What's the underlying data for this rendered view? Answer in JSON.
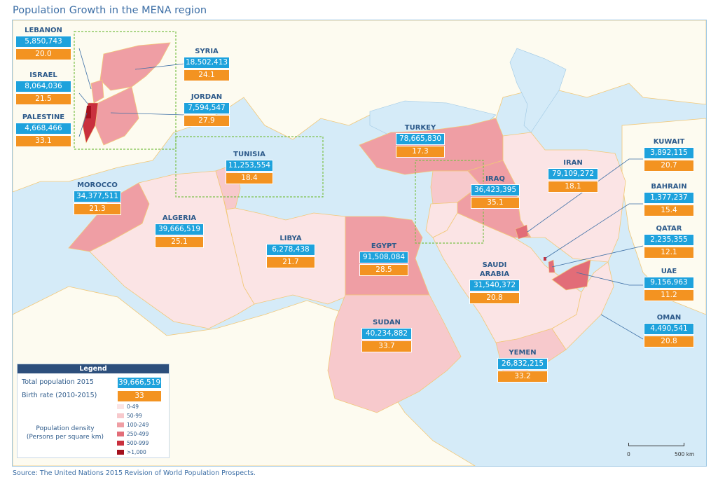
{
  "title": "Population Growth in the MENA region",
  "source": "Source: The United Nations 2015 Revision of World Population Prospects.",
  "countries": {
    "lebanon": {
      "name": "LEBANON",
      "population": "5,850,743",
      "birth_rate": "20.0"
    },
    "israel": {
      "name": "ISRAEL",
      "population": "8,064,036",
      "birth_rate": "21.5"
    },
    "palestine": {
      "name": "PALESTINE",
      "population": "4,668,466",
      "birth_rate": "33.1"
    },
    "syria": {
      "name": "SYRIA",
      "population": "18,502,413",
      "birth_rate": "24.1"
    },
    "jordan": {
      "name": "JORDAN",
      "population": "7,594,547",
      "birth_rate": "27.9"
    },
    "turkey": {
      "name": "TURKEY",
      "population": "78,665,830",
      "birth_rate": "17.3"
    },
    "tunisia": {
      "name": "TUNISIA",
      "population": "11,253,554",
      "birth_rate": "18.4"
    },
    "morocco": {
      "name": "MOROCCO",
      "population": "34,377,511",
      "birth_rate": "21.3"
    },
    "algeria": {
      "name": "ALGERIA",
      "population": "39,666,519",
      "birth_rate": "25.1"
    },
    "libya": {
      "name": "LIBYA",
      "population": "6,278,438",
      "birth_rate": "21.7"
    },
    "egypt": {
      "name": "EGYPT",
      "population": "91,508,084",
      "birth_rate": "28.5"
    },
    "iraq": {
      "name": "IRAQ",
      "population": "36,423,395",
      "birth_rate": "35.1"
    },
    "iran": {
      "name": "IRAN",
      "population": "79,109,272",
      "birth_rate": "18.1"
    },
    "saudi": {
      "name": "SAUDI ARABIA",
      "population": "31,540,372",
      "birth_rate": "20.8"
    },
    "sudan": {
      "name": "SUDAN",
      "population": "40,234,882",
      "birth_rate": "33.7"
    },
    "yemen": {
      "name": "YEMEN",
      "population": "26,832,215",
      "birth_rate": "33.2"
    },
    "kuwait": {
      "name": "KUWAIT",
      "population": "3,892,115",
      "birth_rate": "20.7"
    },
    "bahrain": {
      "name": "BAHRAIN",
      "population": "1,377,237",
      "birth_rate": "15.4"
    },
    "qatar": {
      "name": "QATAR",
      "population": "2,235,355",
      "birth_rate": "12.1"
    },
    "uae": {
      "name": "UAE",
      "population": "9,156,963",
      "birth_rate": "11.2"
    },
    "oman": {
      "name": "OMAN",
      "population": "4,490,541",
      "birth_rate": "20.8"
    }
  },
  "legend": {
    "title": "Legend",
    "total_population_label": "Total population 2015",
    "total_population_value": "39,666,519",
    "birth_rate_label": "Birth rate (2010-2015)",
    "birth_rate_value": "33",
    "density_label": "Population density (Persons per square km)",
    "density_classes": [
      {
        "label": "0-49",
        "color": "#fbe4e5"
      },
      {
        "label": "50-99",
        "color": "#f7c9cc"
      },
      {
        "label": "100-249",
        "color": "#ef9ea4"
      },
      {
        "label": "250-499",
        "color": "#e26d78"
      },
      {
        "label": "500-999",
        "color": "#c9303e"
      },
      {
        "label": ">1,000",
        "color": "#a3101d"
      }
    ]
  },
  "scale_bar": {
    "start": "0",
    "end": "500 km"
  },
  "colors": {
    "sea": "#d5ebf8",
    "land_other": "#fdfbf0",
    "border": "#f2c878",
    "population_box": "#1ea2dc",
    "birth_rate_box": "#f39321",
    "title_text": "#3d6fa6",
    "callout_frame": "#7cc04a"
  }
}
